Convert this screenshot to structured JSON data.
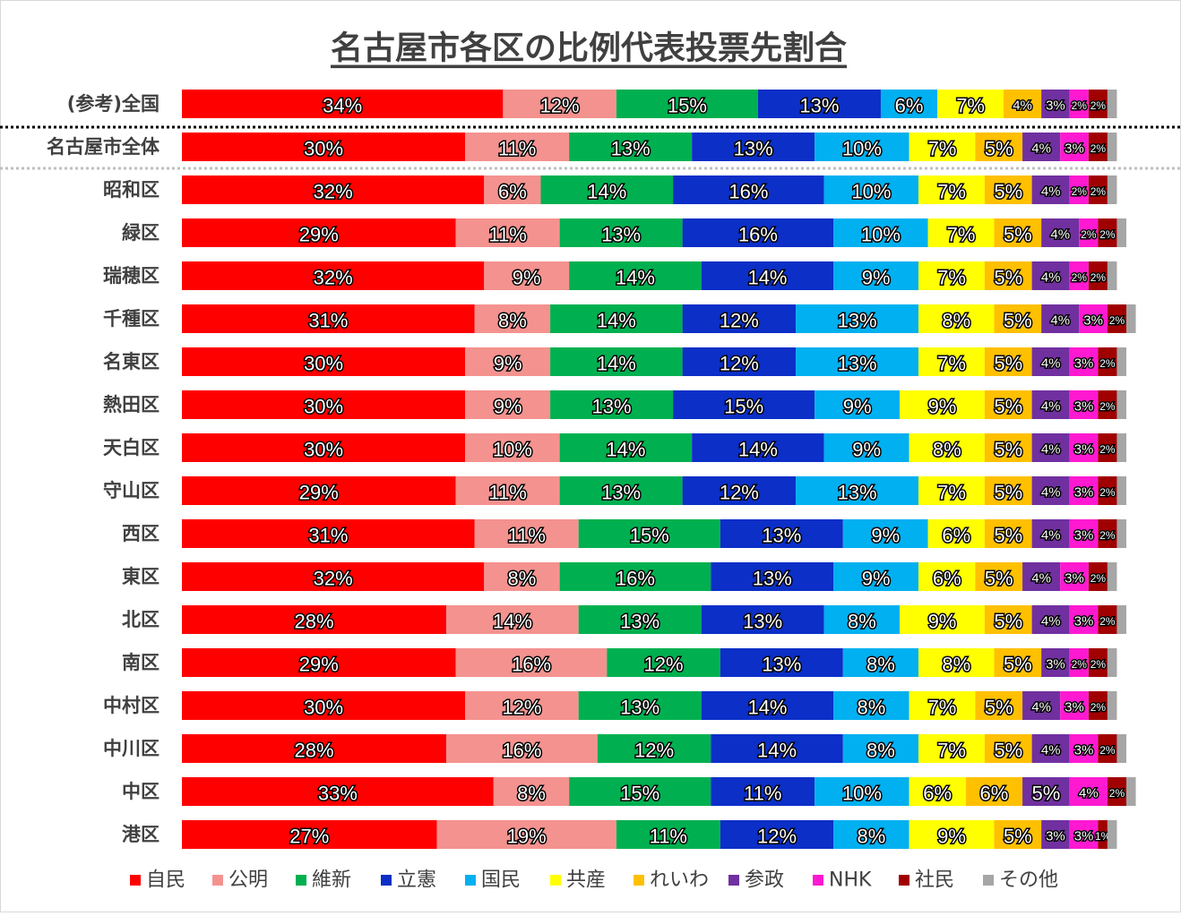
{
  "chart_data": {
    "type": "stacked-bar-100",
    "title": "名古屋市各区の比例代表投票先割合",
    "xlim": [
      0,
      100
    ],
    "categories": [
      "(参考)全国",
      "名古屋市全体",
      "昭和区",
      "緑区",
      "瑞穂区",
      "千種区",
      "名東区",
      "熱田区",
      "天白区",
      "守山区",
      "西区",
      "東区",
      "北区",
      "南区",
      "中村区",
      "中川区",
      "中区",
      "港区"
    ],
    "series": [
      {
        "name": "自民",
        "color": "#ff0000",
        "values": [
          34,
          30,
          32,
          29,
          32,
          31,
          30,
          30,
          30,
          29,
          31,
          32,
          28,
          29,
          30,
          28,
          33,
          27
        ],
        "value_labels": [
          "34%",
          "30%",
          "32%",
          "29%",
          "32%",
          "31%",
          "30%",
          "30%",
          "30%",
          "29%",
          "31%",
          "32%",
          "28%",
          "29%",
          "30%",
          "28%",
          "33%",
          "27%"
        ]
      },
      {
        "name": "公明",
        "color": "#f4928f",
        "values": [
          12,
          11,
          6,
          11,
          9,
          8,
          9,
          9,
          10,
          11,
          11,
          8,
          14,
          16,
          12,
          16,
          8,
          19
        ],
        "value_labels": [
          "12%",
          "11%",
          "6%",
          "11%",
          "9%",
          "8%",
          "9%",
          "9%",
          "10%",
          "11%",
          "11%",
          "8%",
          "14%",
          "16%",
          "12%",
          "16%",
          "8%",
          "19%"
        ]
      },
      {
        "name": "維新",
        "color": "#00b050",
        "values": [
          15,
          13,
          14,
          13,
          14,
          14,
          14,
          13,
          14,
          13,
          15,
          16,
          13,
          12,
          13,
          12,
          15,
          11
        ],
        "value_labels": [
          "15%",
          "13%",
          "14%",
          "13%",
          "14%",
          "14%",
          "14%",
          "13%",
          "14%",
          "13%",
          "15%",
          "16%",
          "13%",
          "12%",
          "13%",
          "12%",
          "15%",
          "11%"
        ]
      },
      {
        "name": "立憲",
        "color": "#0b2fc7",
        "values": [
          13,
          13,
          16,
          16,
          14,
          12,
          12,
          15,
          14,
          12,
          13,
          13,
          13,
          13,
          14,
          14,
          11,
          12
        ],
        "value_labels": [
          "13%",
          "13%",
          "16%",
          "16%",
          "14%",
          "12%",
          "12%",
          "15%",
          "14%",
          "12%",
          "13%",
          "13%",
          "13%",
          "13%",
          "14%",
          "14%",
          "11%",
          "12%"
        ]
      },
      {
        "name": "国民",
        "color": "#00b0f0",
        "values": [
          6,
          10,
          10,
          10,
          9,
          13,
          13,
          9,
          9,
          13,
          9,
          9,
          8,
          8,
          8,
          8,
          10,
          8
        ],
        "value_labels": [
          "6%",
          "10%",
          "10%",
          "10%",
          "9%",
          "13%",
          "13%",
          "9%",
          "9%",
          "13%",
          "9%",
          "9%",
          "8%",
          "8%",
          "8%",
          "8%",
          "10%",
          "8%"
        ]
      },
      {
        "name": "共産",
        "color": "#ffff00",
        "values": [
          7,
          7,
          7,
          7,
          7,
          8,
          7,
          9,
          8,
          7,
          6,
          6,
          9,
          8,
          7,
          7,
          6,
          9
        ],
        "value_labels": [
          "7%",
          "7%",
          "7%",
          "7%",
          "7%",
          "8%",
          "7%",
          "9%",
          "8%",
          "7%",
          "6%",
          "6%",
          "9%",
          "8%",
          "7%",
          "7%",
          "6%",
          "9%"
        ]
      },
      {
        "name": "れいわ",
        "color": "#ffc000",
        "values": [
          4,
          5,
          5,
          5,
          5,
          5,
          5,
          5,
          5,
          5,
          5,
          5,
          5,
          5,
          5,
          5,
          6,
          5
        ],
        "value_labels": [
          "4%",
          "5%",
          "5%",
          "5%",
          "5%",
          "5%",
          "5%",
          "5%",
          "5%",
          "5%",
          "5%",
          "5%",
          "5%",
          "5%",
          "5%",
          "5%",
          "6%",
          "5%"
        ]
      },
      {
        "name": "参政",
        "color": "#7030a0",
        "values": [
          3,
          4,
          4,
          4,
          4,
          4,
          4,
          4,
          4,
          4,
          4,
          4,
          4,
          3,
          4,
          4,
          5,
          3
        ],
        "value_labels": [
          "3%",
          "4%",
          "4%",
          "4%",
          "4%",
          "4%",
          "4%",
          "4%",
          "4%",
          "4%",
          "4%",
          "4%",
          "4%",
          "3%",
          "4%",
          "4%",
          "5%",
          "3%"
        ]
      },
      {
        "name": "NHK",
        "color": "#ff19d0",
        "values": [
          2,
          3,
          2,
          2,
          2,
          3,
          3,
          3,
          3,
          3,
          3,
          3,
          3,
          2,
          3,
          3,
          4,
          3
        ],
        "value_labels": [
          "2%",
          "3%",
          "2%",
          "2%",
          "2%",
          "3%",
          "3%",
          "3%",
          "3%",
          "3%",
          "3%",
          "3%",
          "3%",
          "2%",
          "3%",
          "3%",
          "4%",
          "3%"
        ]
      },
      {
        "name": "社民",
        "color": "#a00000",
        "values": [
          2,
          2,
          2,
          2,
          2,
          2,
          2,
          2,
          2,
          2,
          2,
          2,
          2,
          2,
          2,
          2,
          2,
          1
        ],
        "value_labels": [
          "2%",
          "2%",
          "2%",
          "2%",
          "2%",
          "2%",
          "2%",
          "2%",
          "2%",
          "2%",
          "2%",
          "2%",
          "2%",
          "2%",
          "2%",
          "2%",
          "2%",
          "1%"
        ]
      },
      {
        "name": "その他",
        "color": "#a6a6a6",
        "values": [
          1,
          1,
          1,
          1,
          1,
          1,
          1,
          1,
          1,
          1,
          1,
          1,
          1,
          1,
          1,
          1,
          1,
          1
        ]
      }
    ]
  }
}
